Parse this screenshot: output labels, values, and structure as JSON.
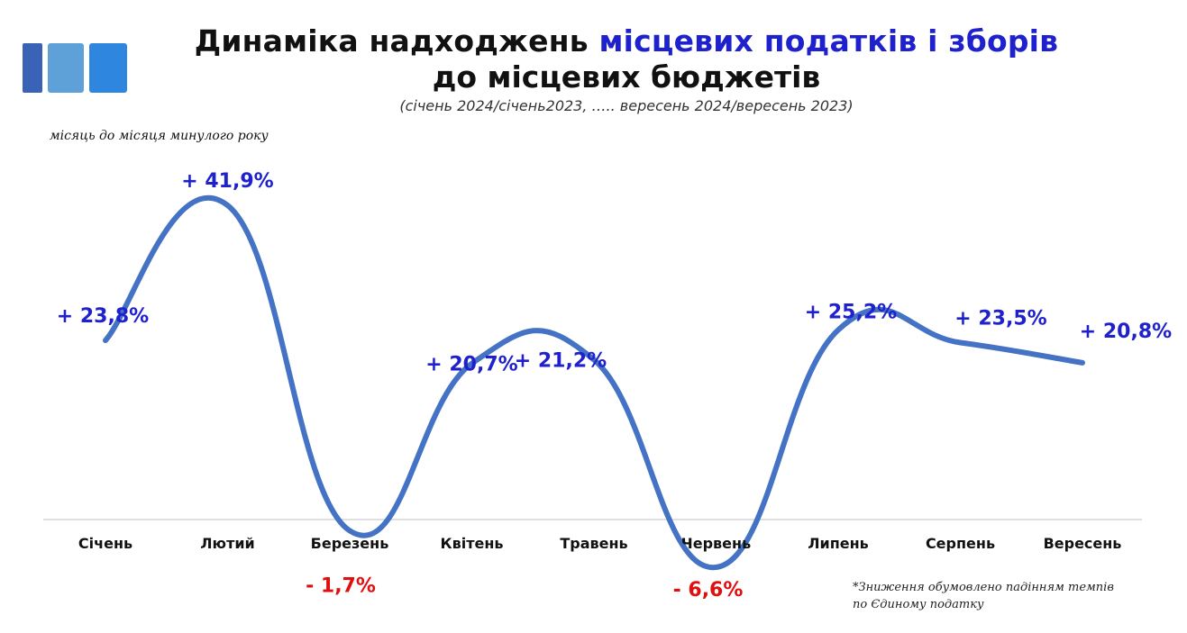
{
  "header": {
    "title_part1": "Динаміка надходжень ",
    "title_highlight": "місцевих податків і зборів",
    "title_line2": "до місцевих бюджетів",
    "subtitle": "(січень 2024/січень2023, ….. вересень 2024/вересень 2023)"
  },
  "note_left": "місяць до місяця минулого року",
  "footnote": {
    "line1": "*Зниження обумовлено падінням темпів",
    "line2": "по Єдиному податку"
  },
  "colors": {
    "line": "#4472c4",
    "positive_label": "#1f22cc",
    "negative_label": "#e01010",
    "title_highlight": "#1f22cc",
    "logo": [
      "#3a63b8",
      "#5ea0d8",
      "#2e86de"
    ]
  },
  "chart_data": {
    "type": "line",
    "categories": [
      "Січень",
      "Лютий",
      "Березень",
      "Квітень",
      "Травень",
      "Червень",
      "Липень",
      "Серпень",
      "Вересень"
    ],
    "values": [
      23.8,
      41.9,
      -1.7,
      20.7,
      21.2,
      -6.6,
      25.2,
      23.5,
      20.8
    ],
    "labels": [
      "+ 23,8%",
      "+ 41,9%",
      "- 1,7%",
      "+ 20,7%",
      "+ 21,2%",
      "- 6,6%",
      "+ 25,2%",
      "+ 23,5%",
      "+ 20,8%"
    ],
    "title": "Динаміка надходжень місцевих податків і зборів до місцевих бюджетів",
    "xlabel": "",
    "ylabel": "",
    "grid": false,
    "smooth": true
  }
}
